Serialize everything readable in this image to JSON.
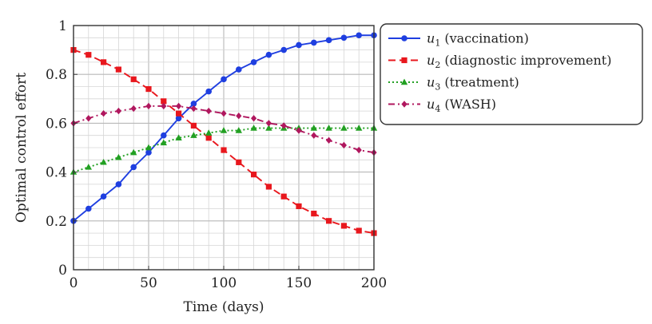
{
  "chart_data": {
    "type": "line",
    "xlabel": "Time (days)",
    "ylabel": "Optimal control effort",
    "xlim": [
      0,
      200
    ],
    "ylim": [
      0,
      1
    ],
    "xticks": [
      "0",
      "50",
      "100",
      "150",
      "200"
    ],
    "yticks": [
      "0",
      "0.2",
      "0.4",
      "0.6",
      "0.8",
      "1"
    ],
    "grid": true,
    "legend_position": "outside-right-top",
    "x": [
      0,
      10,
      20,
      30,
      40,
      50,
      60,
      70,
      80,
      90,
      100,
      110,
      120,
      130,
      140,
      150,
      160,
      170,
      180,
      190,
      200
    ],
    "series": [
      {
        "name": "u1",
        "legend_label": "(vaccination)",
        "color": "#1f3fe0",
        "marker": "circle",
        "dash": "solid",
        "values": [
          0.2,
          0.25,
          0.3,
          0.35,
          0.42,
          0.48,
          0.55,
          0.62,
          0.68,
          0.73,
          0.78,
          0.82,
          0.85,
          0.88,
          0.9,
          0.92,
          0.93,
          0.94,
          0.95,
          0.96,
          0.96
        ]
      },
      {
        "name": "u2",
        "legend_label": "(diagnostic improvement)",
        "color": "#e8171d",
        "marker": "square",
        "dash": "dashed",
        "values": [
          0.9,
          0.88,
          0.85,
          0.82,
          0.78,
          0.74,
          0.69,
          0.64,
          0.59,
          0.54,
          0.49,
          0.44,
          0.39,
          0.34,
          0.3,
          0.26,
          0.23,
          0.2,
          0.18,
          0.16,
          0.15
        ]
      },
      {
        "name": "u3",
        "legend_label": "(treatment)",
        "color": "#22a022",
        "marker": "triangle",
        "dash": "dotted",
        "values": [
          0.4,
          0.42,
          0.44,
          0.46,
          0.48,
          0.5,
          0.52,
          0.54,
          0.55,
          0.56,
          0.57,
          0.57,
          0.58,
          0.58,
          0.58,
          0.58,
          0.58,
          0.58,
          0.58,
          0.58,
          0.58
        ]
      },
      {
        "name": "u4",
        "legend_label": "(WASH)",
        "color": "#b0175e",
        "marker": "diamond",
        "dash": "dashdot",
        "values": [
          0.6,
          0.62,
          0.64,
          0.65,
          0.66,
          0.67,
          0.67,
          0.67,
          0.66,
          0.65,
          0.64,
          0.63,
          0.62,
          0.6,
          0.59,
          0.57,
          0.55,
          0.53,
          0.51,
          0.49,
          0.48
        ]
      }
    ]
  }
}
